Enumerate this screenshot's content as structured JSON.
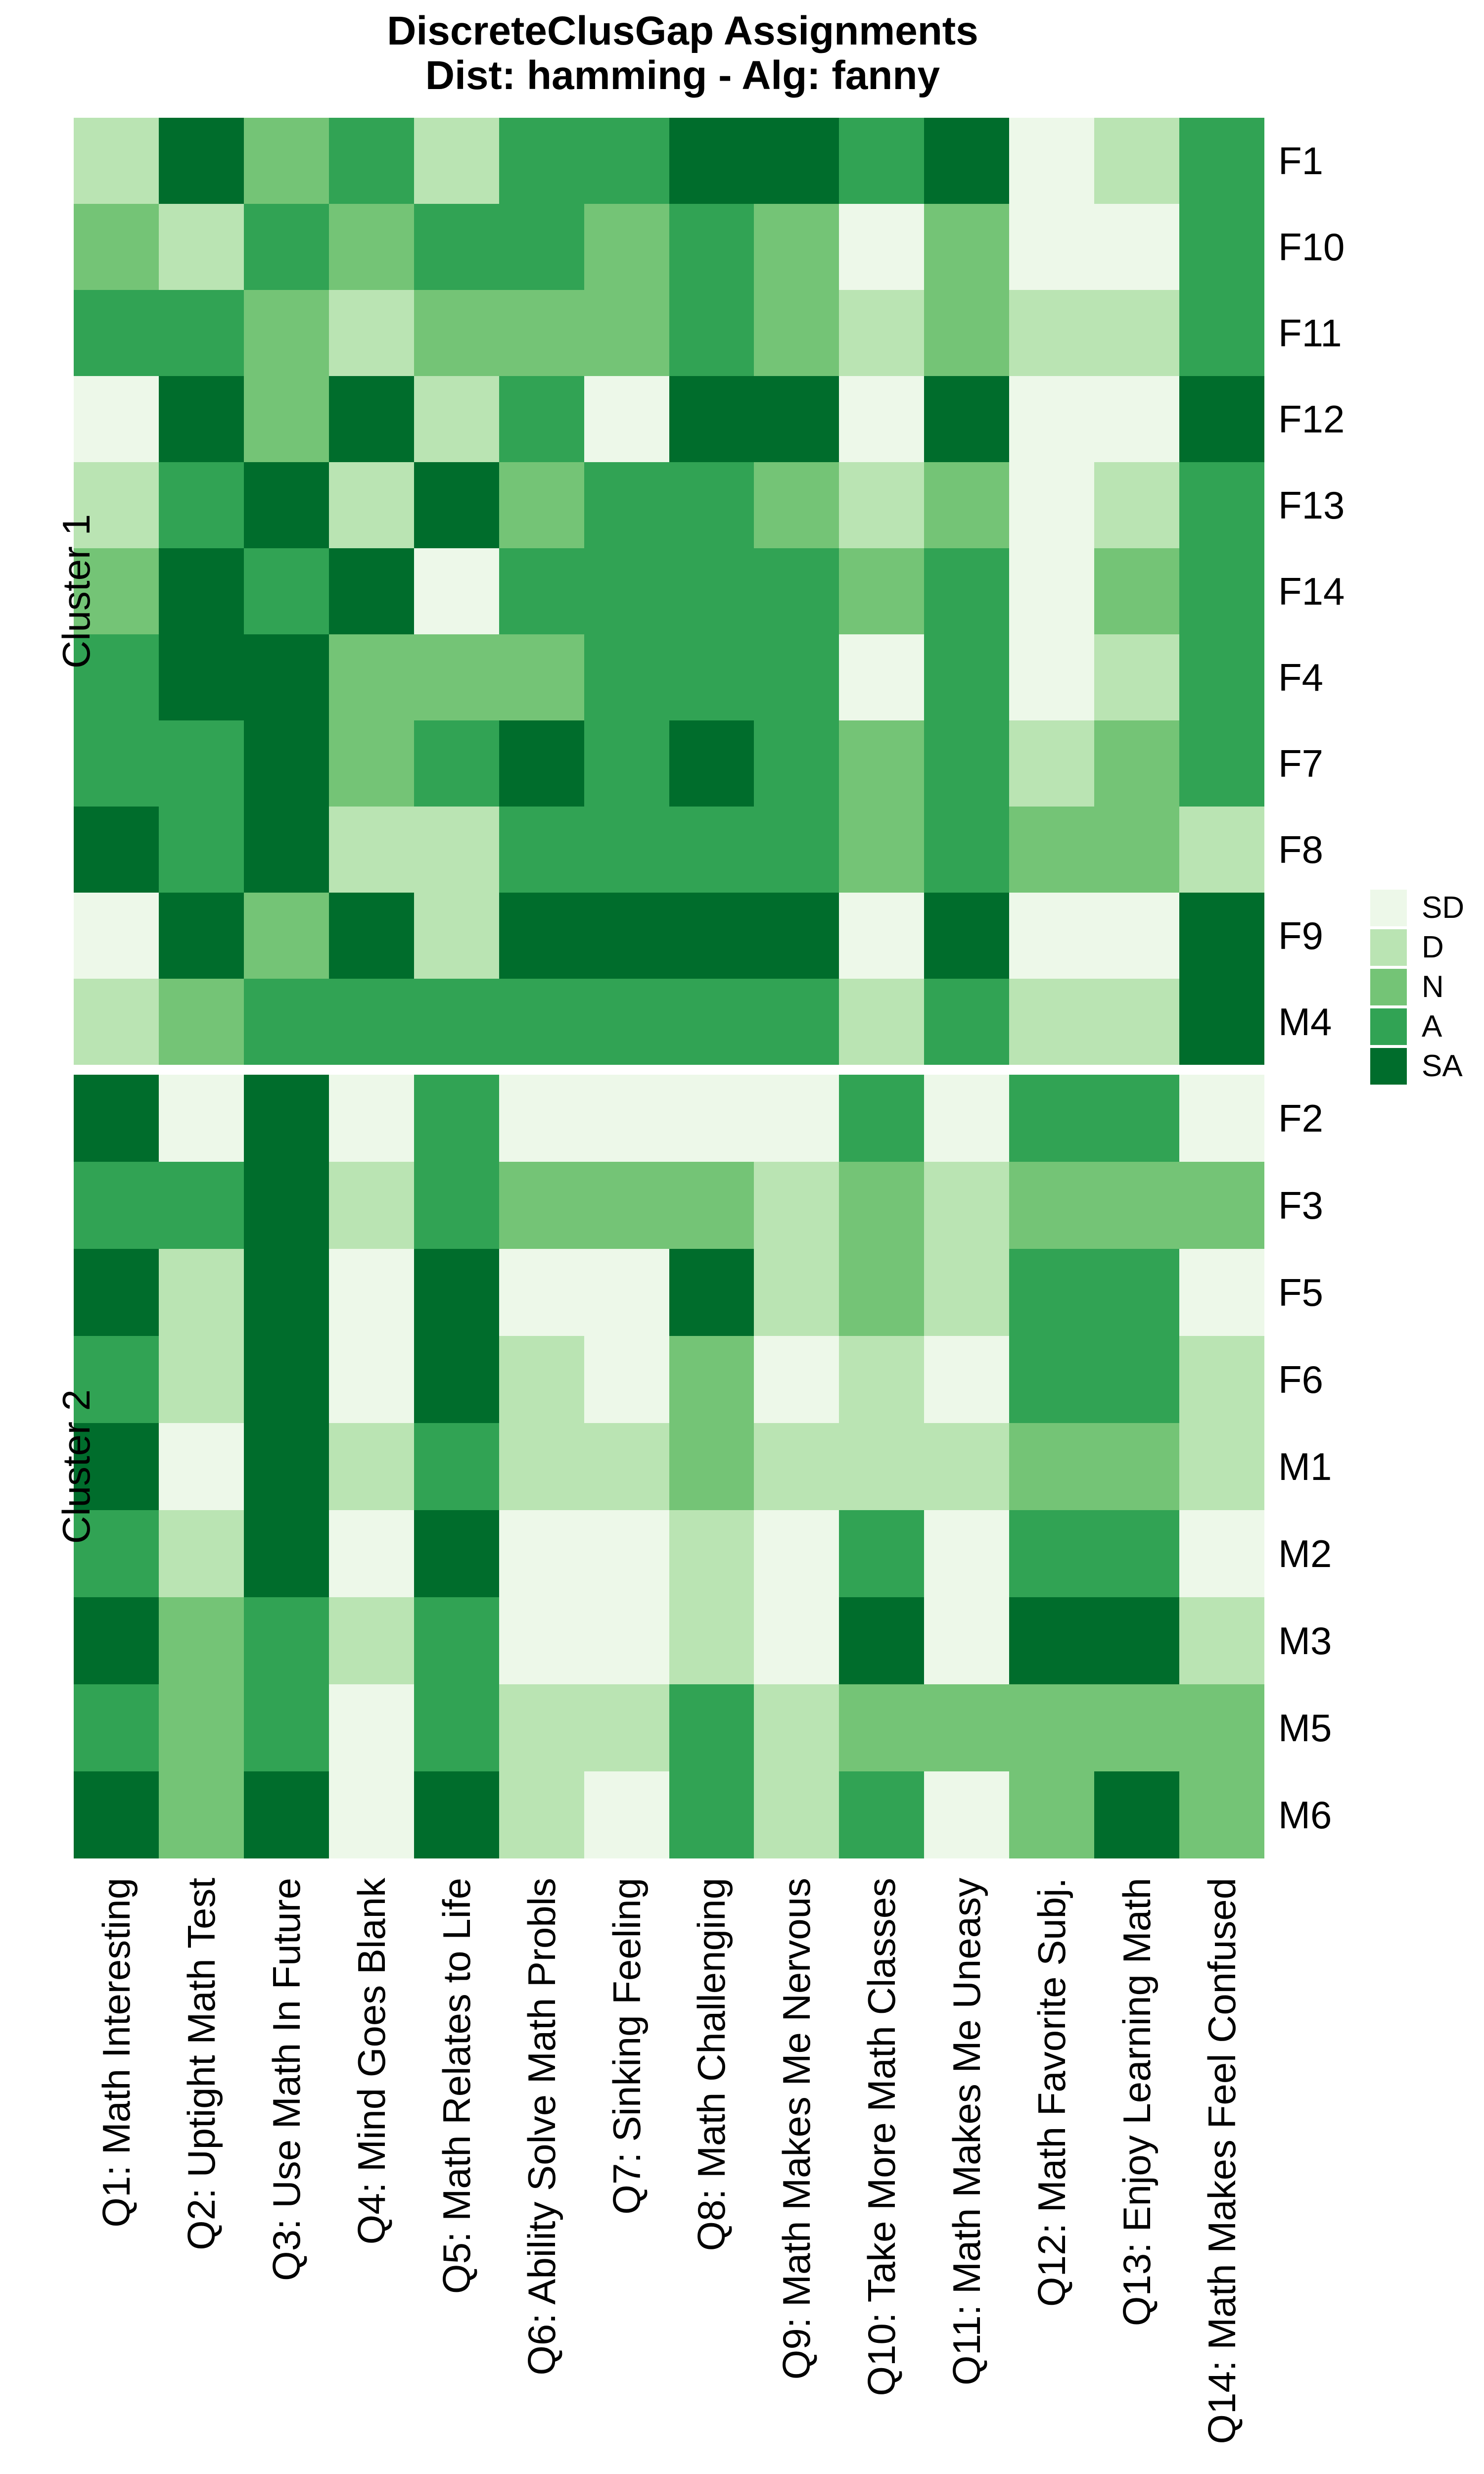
{
  "title": {
    "line1": "DiscreteClusGap Assignments",
    "line2": "Dist: hamming - Alg: fanny"
  },
  "chart_data": {
    "type": "heatmap",
    "title": "DiscreteClusGap Assignments",
    "subtitle": "Dist: hamming - Alg: fanny",
    "columns": [
      "Q1: Math Interesting",
      "Q2: Uptight Math Test",
      "Q3: Use Math In Future",
      "Q4: Mind Goes Blank",
      "Q5: Math Relates to Life",
      "Q6: Ability Solve Math Probls",
      "Q7: Sinking Feeling",
      "Q8: Math Challenging",
      "Q9: Math Makes Me Nervous",
      "Q10: Take More Math Classes",
      "Q11: Math Makes Me Uneasy",
      "Q12: Math Favorite Subj.",
      "Q13: Enjoy Learning Math",
      "Q14: Math Makes Feel Confused"
    ],
    "levels": [
      "SD",
      "D",
      "N",
      "A",
      "SA"
    ],
    "level_colors": {
      "SD": "#EDF8E9",
      "D": "#BAE4B3",
      "N": "#74C476",
      "A": "#31A354",
      "SA": "#006D2C"
    },
    "legend_position": "right",
    "x_label_rotation": -90,
    "clusters": [
      {
        "name": "Cluster 1",
        "rows": [
          {
            "label": "F1",
            "values": [
              "D",
              "SA",
              "N",
              "A",
              "D",
              "A",
              "A",
              "SA",
              "SA",
              "A",
              "SA",
              "SD",
              "D",
              "A"
            ]
          },
          {
            "label": "F10",
            "values": [
              "N",
              "D",
              "A",
              "N",
              "A",
              "A",
              "N",
              "A",
              "N",
              "SD",
              "N",
              "SD",
              "SD",
              "A"
            ]
          },
          {
            "label": "F11",
            "values": [
              "A",
              "A",
              "N",
              "D",
              "N",
              "N",
              "N",
              "A",
              "N",
              "D",
              "N",
              "D",
              "D",
              "A"
            ]
          },
          {
            "label": "F12",
            "values": [
              "SD",
              "SA",
              "N",
              "SA",
              "D",
              "A",
              "SD",
              "SA",
              "SA",
              "SD",
              "SA",
              "SD",
              "SD",
              "SA"
            ]
          },
          {
            "label": "F13",
            "values": [
              "D",
              "A",
              "SA",
              "D",
              "SA",
              "N",
              "A",
              "A",
              "N",
              "D",
              "N",
              "SD",
              "D",
              "A"
            ]
          },
          {
            "label": "F14",
            "values": [
              "N",
              "SA",
              "A",
              "SA",
              "SD",
              "A",
              "A",
              "A",
              "A",
              "N",
              "A",
              "SD",
              "N",
              "A"
            ]
          },
          {
            "label": "F4",
            "values": [
              "A",
              "SA",
              "SA",
              "N",
              "N",
              "N",
              "A",
              "A",
              "A",
              "SD",
              "A",
              "SD",
              "D",
              "A"
            ]
          },
          {
            "label": "F7",
            "values": [
              "A",
              "A",
              "SA",
              "N",
              "A",
              "SA",
              "A",
              "SA",
              "A",
              "N",
              "A",
              "D",
              "N",
              "A"
            ]
          },
          {
            "label": "F8",
            "values": [
              "SA",
              "A",
              "SA",
              "D",
              "D",
              "A",
              "A",
              "A",
              "A",
              "N",
              "A",
              "N",
              "N",
              "D"
            ]
          },
          {
            "label": "F9",
            "values": [
              "SD",
              "SA",
              "N",
              "SA",
              "D",
              "SA",
              "SA",
              "SA",
              "SA",
              "SD",
              "SA",
              "SD",
              "SD",
              "SA"
            ]
          },
          {
            "label": "M4",
            "values": [
              "D",
              "N",
              "A",
              "A",
              "A",
              "A",
              "A",
              "A",
              "A",
              "D",
              "A",
              "D",
              "D",
              "SA"
            ]
          }
        ]
      },
      {
        "name": "Cluster 2",
        "rows": [
          {
            "label": "F2",
            "values": [
              "SA",
              "SD",
              "SA",
              "SD",
              "A",
              "SD",
              "SD",
              "SD",
              "SD",
              "A",
              "SD",
              "A",
              "A",
              "SD"
            ]
          },
          {
            "label": "F3",
            "values": [
              "A",
              "A",
              "SA",
              "D",
              "A",
              "N",
              "N",
              "N",
              "D",
              "N",
              "D",
              "N",
              "N",
              "N"
            ]
          },
          {
            "label": "F5",
            "values": [
              "SA",
              "D",
              "SA",
              "SD",
              "SA",
              "SD",
              "SD",
              "SA",
              "D",
              "N",
              "D",
              "A",
              "A",
              "SD"
            ]
          },
          {
            "label": "F6",
            "values": [
              "A",
              "D",
              "SA",
              "SD",
              "SA",
              "D",
              "SD",
              "N",
              "SD",
              "D",
              "SD",
              "A",
              "A",
              "D"
            ]
          },
          {
            "label": "M1",
            "values": [
              "SA",
              "SD",
              "SA",
              "D",
              "A",
              "D",
              "D",
              "N",
              "D",
              "D",
              "D",
              "N",
              "N",
              "D"
            ]
          },
          {
            "label": "M2",
            "values": [
              "A",
              "D",
              "SA",
              "SD",
              "SA",
              "SD",
              "SD",
              "D",
              "SD",
              "A",
              "SD",
              "A",
              "A",
              "SD"
            ]
          },
          {
            "label": "M3",
            "values": [
              "SA",
              "N",
              "A",
              "D",
              "A",
              "SD",
              "SD",
              "D",
              "SD",
              "SA",
              "SD",
              "SA",
              "SA",
              "D"
            ]
          },
          {
            "label": "M5",
            "values": [
              "A",
              "N",
              "A",
              "SD",
              "A",
              "D",
              "D",
              "A",
              "D",
              "N",
              "N",
              "N",
              "N",
              "N"
            ]
          },
          {
            "label": "M6",
            "values": [
              "SA",
              "N",
              "SA",
              "SD",
              "SA",
              "D",
              "SD",
              "A",
              "D",
              "A",
              "SD",
              "N",
              "SA",
              "N"
            ]
          }
        ]
      }
    ]
  }
}
